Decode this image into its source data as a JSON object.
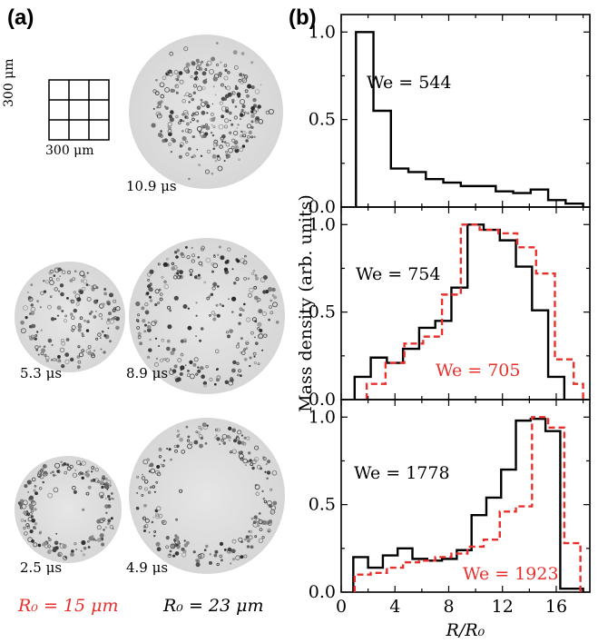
{
  "panel_labels": {
    "a": "(a)",
    "b": "(b)"
  },
  "scale_bar": {
    "vertical_label": "300 μm",
    "horizontal_label": "300 μm"
  },
  "images": [
    {
      "time": "10.9 μs",
      "ring_strength": 0.1,
      "density": 0.8
    },
    {
      "time": "5.3 μs",
      "ring_strength": 0.4,
      "density": 0.35
    },
    {
      "time": "8.9 μs",
      "ring_strength": 0.5,
      "density": 0.7
    },
    {
      "time": "2.5 μs",
      "ring_strength": 0.9,
      "density": 0.4
    },
    {
      "time": "4.9 μs",
      "ring_strength": 0.95,
      "density": 0.6
    }
  ],
  "radius_legend": {
    "left": {
      "text": "R₀ = 15 μm",
      "color": "#e8302c"
    },
    "right": {
      "text": "R₀ = 23 μm",
      "color": "#000000"
    }
  },
  "chart_data": [
    {
      "type": "line",
      "step": true,
      "xlim": [
        0,
        18.5
      ],
      "ylim": [
        0,
        1.1
      ],
      "yticks": [
        "0.0",
        "0.5",
        "1.0"
      ],
      "series": [
        {
          "name": "We = 544",
          "color": "#000000",
          "dashed": false,
          "edges": [
            1.1,
            2.4,
            3.7,
            5.0,
            6.3,
            7.6,
            8.9,
            10.2,
            11.5,
            12.8,
            14.1,
            15.4,
            16.7,
            18.0
          ],
          "values": [
            1.0,
            0.55,
            0.22,
            0.2,
            0.16,
            0.14,
            0.12,
            0.12,
            0.09,
            0.08,
            0.1,
            0.04,
            0.02
          ]
        }
      ],
      "annotations": [
        {
          "text": "We = 544",
          "color": "#000000"
        }
      ]
    },
    {
      "type": "line",
      "step": true,
      "xlim": [
        0,
        18.5
      ],
      "ylim": [
        0,
        1.1
      ],
      "yticks": [
        "0.0",
        "0.5",
        "1.0"
      ],
      "ylabel": "Mass density (arb. units)",
      "series": [
        {
          "name": "We = 754",
          "color": "#000000",
          "dashed": false,
          "edges": [
            1.0,
            2.2,
            3.4,
            4.6,
            5.8,
            7.0,
            8.2,
            9.4,
            10.6,
            11.8,
            13.0,
            14.2,
            15.4,
            16.6
          ],
          "values": [
            0.13,
            0.24,
            0.21,
            0.29,
            0.41,
            0.45,
            0.64,
            1.0,
            0.97,
            0.91,
            0.76,
            0.51,
            0.13
          ]
        },
        {
          "name": "We = 705",
          "color": "#e8302c",
          "dashed": true,
          "edges": [
            1.9,
            3.3,
            4.7,
            6.1,
            7.5,
            8.9,
            10.3,
            11.7,
            13.1,
            14.5,
            15.9,
            17.3,
            18.0
          ],
          "values": [
            0.09,
            0.21,
            0.32,
            0.36,
            0.6,
            1.0,
            0.97,
            0.95,
            0.87,
            0.72,
            0.23,
            0.09
          ]
        }
      ],
      "annotations": [
        {
          "text": "We = 754",
          "color": "#000000"
        },
        {
          "text": "We = 705",
          "color": "#e8302c"
        }
      ]
    },
    {
      "type": "line",
      "step": true,
      "xlim": [
        0,
        18.5
      ],
      "ylim": [
        0,
        1.1
      ],
      "yticks": [
        "0.0",
        "0.5",
        "1.0"
      ],
      "xticks": [
        0,
        4,
        8,
        12,
        16
      ],
      "xlabel": "R/R₀",
      "series": [
        {
          "name": "We = 1778",
          "color": "#000000",
          "dashed": false,
          "edges": [
            0.9,
            2.0,
            3.1,
            4.2,
            5.3,
            6.4,
            7.5,
            8.6,
            9.7,
            10.8,
            11.9,
            13.0,
            14.1,
            15.2,
            16.3,
            17.3,
            18.0
          ],
          "values": [
            0.2,
            0.14,
            0.21,
            0.25,
            0.19,
            0.18,
            0.19,
            0.24,
            0.44,
            0.54,
            0.7,
            0.98,
            0.99,
            0.92,
            0.02,
            0.02
          ]
        },
        {
          "name": "We = 1923",
          "color": "#e8302c",
          "dashed": true,
          "edges": [
            1.0,
            2.2,
            3.4,
            4.6,
            5.8,
            7.0,
            8.2,
            9.4,
            10.6,
            11.8,
            13.0,
            14.2,
            15.4,
            16.6,
            17.8
          ],
          "values": [
            0.1,
            0.11,
            0.14,
            0.17,
            0.18,
            0.2,
            0.22,
            0.26,
            0.3,
            0.46,
            0.49,
            1.0,
            0.94,
            0.28
          ]
        }
      ],
      "annotations": [
        {
          "text": "We = 1778",
          "color": "#000000"
        },
        {
          "text": "We = 1923",
          "color": "#e8302c"
        }
      ]
    }
  ]
}
